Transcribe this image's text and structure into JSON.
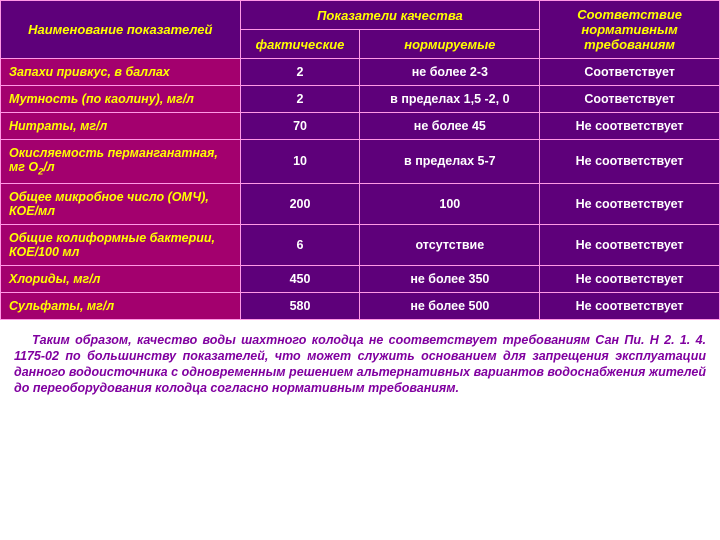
{
  "table": {
    "headers": {
      "name": "Наименование показателей",
      "quality_group": "Показатели качества",
      "actual": "фактические",
      "norm": "нормируемые",
      "compliance": "Соответствие нормативным требованиям"
    },
    "rows": [
      {
        "name": "Запахи привкус, в баллах",
        "actual": "2",
        "norm": "не более 2-3",
        "compliance": "Соответствует"
      },
      {
        "name": "Мутность (по каолину), мг/л",
        "actual": "2",
        "norm": "в пределах 1,5 -2, 0",
        "compliance": "Соответствует"
      },
      {
        "name": "Нитраты, мг/л",
        "actual": "70",
        "norm": "не более 45",
        "compliance": "Не соответствует"
      },
      {
        "name": "Окисляемость перманганатная, мг О₂/л",
        "actual": "10",
        "norm": "в пределах 5-7",
        "compliance": "Не соответствует"
      },
      {
        "name": "Общее микробное число (ОМЧ), КОЕ/мл",
        "actual": "200",
        "norm": "100",
        "compliance": "Не соответствует"
      },
      {
        "name": "Общие колиформные бактерии, КОЕ/100 мл",
        "actual": "6",
        "norm": "отсутствие",
        "compliance": "Не соответствует"
      },
      {
        "name": "Хлориды, мг/л",
        "actual": "450",
        "norm": "не более 350",
        "compliance": "Не соответствует"
      },
      {
        "name": "Сульфаты, мг/л",
        "actual": "580",
        "norm": "не более 500",
        "compliance": "Не соответствует"
      }
    ]
  },
  "paragraph": "Таким образом, качество воды шахтного колодца не соответствует требованиям Сан Пи. Н 2. 1. 4. 1175-02 по большинству показателей, что может служить основанием для запрещения эксплуатации данного водоисточника с одновременным решением альтернативных вариантов водоснабжения жителей до переоборудования колодца согласно нормативным требованиям."
}
